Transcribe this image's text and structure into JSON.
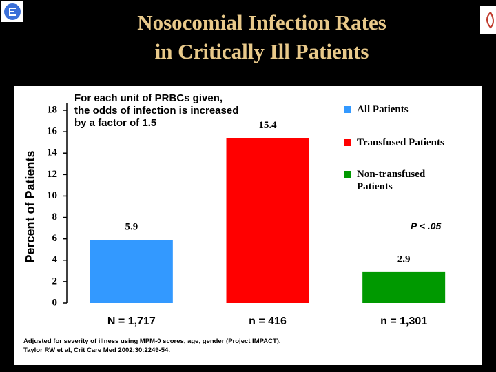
{
  "chart_data": {
    "type": "bar",
    "title": [
      "Nosocomial Infection Rates",
      "in Critically Ill Patients"
    ],
    "ylabel": "Percent of Patients",
    "categories": [
      "N = 1,717",
      "n = 416",
      "n = 1,301"
    ],
    "values": [
      5.9,
      15.4,
      2.9
    ],
    "colors": [
      "#3399ff",
      "#ff0000",
      "#009900"
    ],
    "legend": [
      "All Patients",
      "Transfused Patients",
      "Non-transfused Patients"
    ],
    "ylim": [
      0,
      18
    ],
    "yticks": [
      0,
      2,
      4,
      6,
      8,
      10,
      12,
      14,
      16,
      18
    ],
    "annotation": "For each unit of PRBCs given, the odds of infection is increased by a factor of 1.5",
    "p_value": "P < .05",
    "footnotes": [
      "Adjusted for severity of illness using MPM-0 scores, age, gender (Project IMPACT).",
      "Taylor RW et al, Crit Care Med 2002;30:2249-54."
    ]
  }
}
